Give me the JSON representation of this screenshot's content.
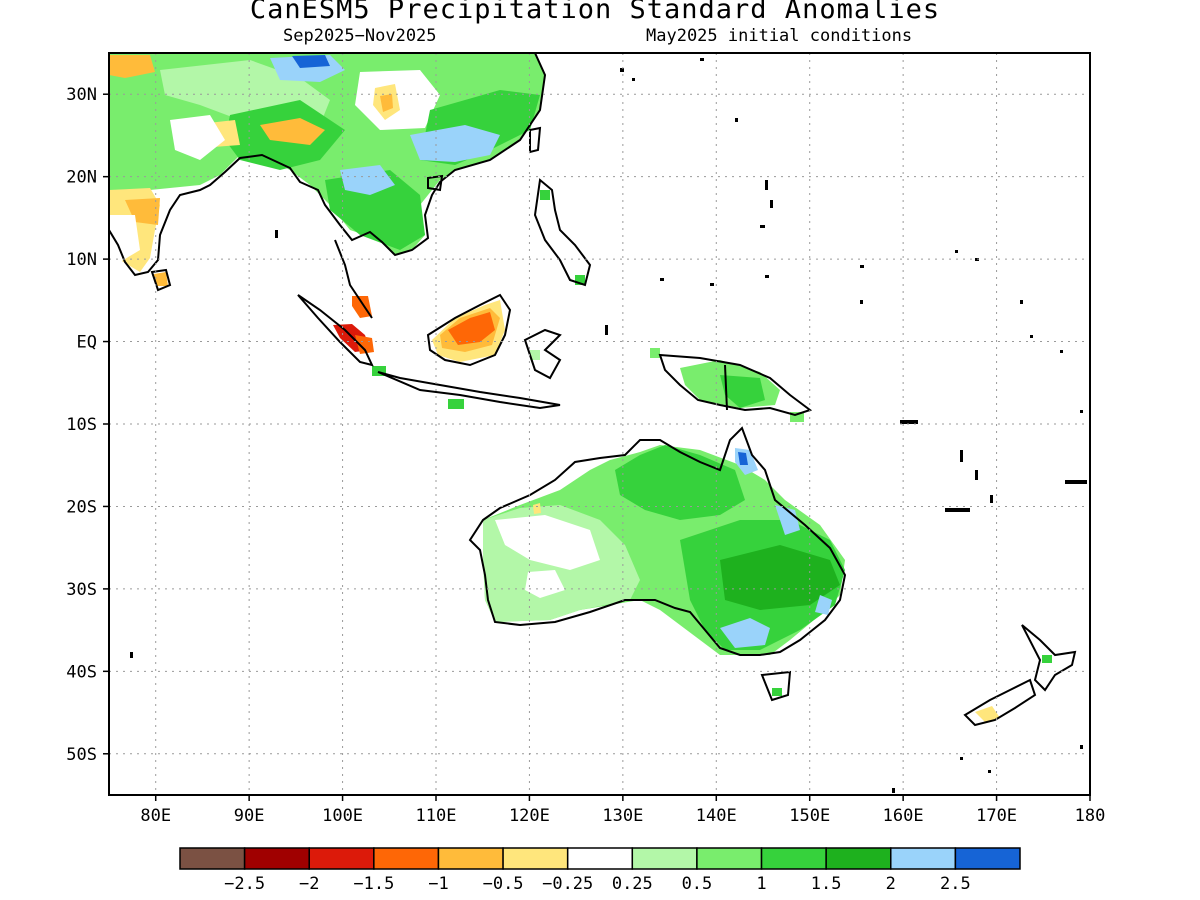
{
  "title": "CanESM5 Precipitation Standard Anomalies",
  "subtitle_left": "Sep2025−Nov2025",
  "subtitle_right": "May2025 initial conditions",
  "map_extent": {
    "lon_min": 75,
    "lon_max": 180,
    "lat_min": -55,
    "lat_max": 35
  },
  "axes": {
    "lat_ticks": [
      {
        "value": 30,
        "label": "30N"
      },
      {
        "value": 20,
        "label": "20N"
      },
      {
        "value": 10,
        "label": "10N"
      },
      {
        "value": 0,
        "label": "EQ"
      },
      {
        "value": -10,
        "label": "10S"
      },
      {
        "value": -20,
        "label": "20S"
      },
      {
        "value": -30,
        "label": "30S"
      },
      {
        "value": -40,
        "label": "40S"
      },
      {
        "value": -50,
        "label": "50S"
      }
    ],
    "lon_ticks": [
      {
        "value": 80,
        "label": "80E"
      },
      {
        "value": 90,
        "label": "90E"
      },
      {
        "value": 100,
        "label": "100E"
      },
      {
        "value": 110,
        "label": "110E"
      },
      {
        "value": 120,
        "label": "120E"
      },
      {
        "value": 130,
        "label": "130E"
      },
      {
        "value": 140,
        "label": "140E"
      },
      {
        "value": 150,
        "label": "150E"
      },
      {
        "value": 160,
        "label": "160E"
      },
      {
        "value": 170,
        "label": "170E"
      },
      {
        "value": 180,
        "label": "180"
      }
    ],
    "grid": "dotted"
  },
  "colorbar": {
    "colors": [
      "#7b5143",
      "#a00000",
      "#dc1a0a",
      "#fe6706",
      "#ffbb3a",
      "#ffe67c",
      "#ffffff",
      "#b3f7a8",
      "#79ed6d",
      "#36d23c",
      "#1eb11e",
      "#9ad3fa",
      "#1664d6"
    ],
    "labels": [
      "−2.5",
      "−2",
      "−1.5",
      "−1",
      "−0.5",
      "−0.25",
      "0.25",
      "0.5",
      "1",
      "1.5",
      "2",
      "2.5"
    ]
  },
  "anomaly_regions": [
    {
      "name": "Australia interior",
      "class": "0.5 to 1"
    },
    {
      "name": "Eastern Australia",
      "class": "1.5 to 2"
    },
    {
      "name": "Southeast Australia",
      "class": "2 to 2.5"
    },
    {
      "name": "Northwest Australia",
      "class": "0.25 to 0.5"
    },
    {
      "name": "Borneo",
      "class": "-1 to -1.5"
    },
    {
      "name": "Sumatra / Malay Peninsula",
      "class": "-1.5 to -2"
    },
    {
      "name": "Southern China",
      "class": "2 to 2.5"
    },
    {
      "name": "Indochina",
      "class": "1 to 1.5"
    },
    {
      "name": "India",
      "class": "-0.25 to -0.5"
    },
    {
      "name": "Tibetan Plateau",
      "class": "0.5 to 1"
    },
    {
      "name": "New Guinea",
      "class": "1 to 1.5"
    },
    {
      "name": "Cape York",
      "class": "2 to 2.5"
    },
    {
      "name": "New Zealand south",
      "class": "-0.25 to -0.5"
    }
  ]
}
